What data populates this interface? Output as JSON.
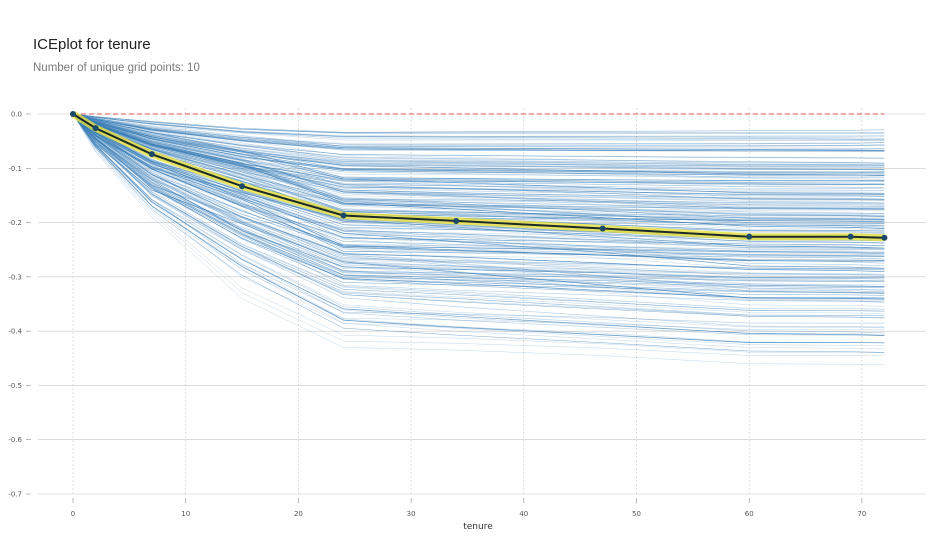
{
  "title": "ICEplot for tenure",
  "subtitle": "Number of unique grid points: 10",
  "chart_data": {
    "type": "line",
    "xlabel": "tenure",
    "ylabel": "",
    "xlim": [
      -3,
      76
    ],
    "ylim": [
      -0.7,
      0.0
    ],
    "grid": true,
    "xticks": [
      0,
      10,
      20,
      30,
      40,
      50,
      60,
      70
    ],
    "yticks": [
      0.0,
      -0.1,
      -0.2,
      -0.3,
      -0.4,
      -0.5,
      -0.6,
      -0.7
    ],
    "grid_points": [
      0,
      2,
      7,
      15,
      24,
      34,
      47,
      60,
      69,
      72
    ],
    "baseline": 0.0,
    "average": {
      "x": [
        0,
        2,
        7,
        15,
        24,
        34,
        47,
        60,
        69,
        72
      ],
      "y": [
        0.0,
        -0.026,
        -0.074,
        -0.133,
        -0.187,
        -0.197,
        -0.211,
        -0.226,
        -0.226,
        -0.228
      ]
    },
    "ice_lines_sample": [
      {
        "y": [
          0.0,
          -0.005,
          -0.015,
          -0.028,
          -0.035,
          -0.035,
          -0.035,
          -0.035,
          -0.035,
          -0.035
        ]
      },
      {
        "y": [
          0.0,
          -0.008,
          -0.022,
          -0.035,
          -0.048,
          -0.048,
          -0.048,
          -0.048,
          -0.048,
          -0.048
        ]
      },
      {
        "y": [
          0.0,
          -0.01,
          -0.03,
          -0.05,
          -0.065,
          -0.066,
          -0.067,
          -0.068,
          -0.068,
          -0.068
        ]
      },
      {
        "y": [
          0.0,
          -0.015,
          -0.045,
          -0.08,
          -0.1,
          -0.102,
          -0.105,
          -0.108,
          -0.108,
          -0.108
        ]
      },
      {
        "y": [
          0.0,
          -0.02,
          -0.06,
          -0.1,
          -0.14,
          -0.145,
          -0.15,
          -0.155,
          -0.156,
          -0.157
        ]
      },
      {
        "y": [
          0.0,
          -0.025,
          -0.07,
          -0.12,
          -0.17,
          -0.175,
          -0.18,
          -0.185,
          -0.186,
          -0.186
        ]
      },
      {
        "y": [
          0.0,
          -0.03,
          -0.085,
          -0.14,
          -0.2,
          -0.205,
          -0.215,
          -0.225,
          -0.226,
          -0.227
        ]
      },
      {
        "y": [
          0.0,
          -0.04,
          -0.1,
          -0.16,
          -0.25,
          -0.252,
          -0.255,
          -0.258,
          -0.259,
          -0.26
        ]
      },
      {
        "y": [
          0.0,
          -0.045,
          -0.13,
          -0.22,
          -0.3,
          -0.305,
          -0.31,
          -0.318,
          -0.32,
          -0.32
        ]
      },
      {
        "y": [
          0.0,
          -0.05,
          -0.15,
          -0.25,
          -0.33,
          -0.34,
          -0.355,
          -0.37,
          -0.371,
          -0.372
        ]
      },
      {
        "y": [
          0.0,
          -0.06,
          -0.17,
          -0.28,
          -0.38,
          -0.395,
          -0.41,
          -0.425,
          -0.426,
          -0.427
        ]
      },
      {
        "y": [
          0.0,
          -0.07,
          -0.19,
          -0.34,
          -0.43,
          -0.435,
          -0.445,
          -0.46,
          -0.461,
          -0.462
        ]
      },
      {
        "y": [
          0.0,
          -0.035,
          -0.09,
          -0.155,
          -0.22,
          -0.235,
          -0.255,
          -0.28,
          -0.282,
          -0.284
        ]
      },
      {
        "y": [
          0.0,
          -0.012,
          -0.035,
          -0.07,
          -0.12,
          -0.122,
          -0.125,
          -0.127,
          -0.127,
          -0.128
        ]
      },
      {
        "y": [
          0.0,
          -0.055,
          -0.14,
          -0.2,
          -0.27,
          -0.29,
          -0.315,
          -0.34,
          -0.342,
          -0.344
        ]
      },
      {
        "y": [
          0.0,
          -0.018,
          -0.055,
          -0.09,
          -0.16,
          -0.17,
          -0.185,
          -0.2,
          -0.201,
          -0.202
        ]
      }
    ],
    "colors": {
      "ice": "#3a7fb8",
      "average": "#1b2a2a",
      "average_band": "#e8e03c",
      "points": "#1a4a6a",
      "baseline": "#d9534f",
      "grid": "#c8c8c8"
    }
  }
}
